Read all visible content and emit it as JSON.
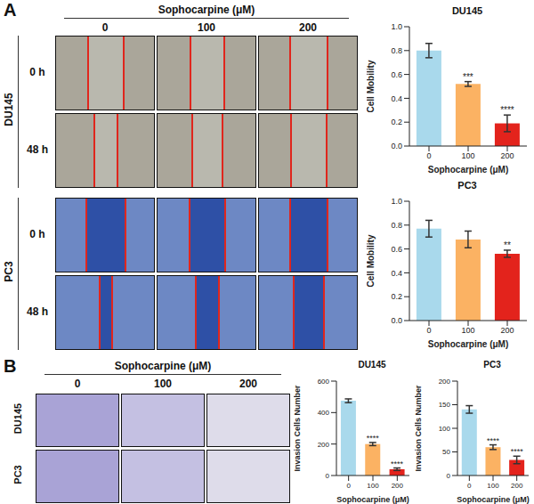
{
  "figure": {
    "panel_a": {
      "label": "A",
      "header": "Sophocarpine (μM)",
      "columns": [
        "0",
        "100",
        "200"
      ],
      "cell_lines": [
        "DU145",
        "PC3"
      ],
      "times": [
        "0 h",
        "48 h"
      ]
    },
    "panel_b": {
      "label": "B",
      "header": "Sophocarpine (μM)",
      "columns": [
        "0",
        "100",
        "200"
      ],
      "cell_lines": [
        "DU145",
        "PC3"
      ]
    }
  },
  "chart_data": [
    {
      "type": "bar",
      "title": "DU145",
      "x_label": "Sophocarpine (μM)",
      "y_label": "Cell Mobility",
      "categories": [
        "0",
        "100",
        "200"
      ],
      "values": [
        0.8,
        0.52,
        0.19
      ],
      "errors": [
        0.06,
        0.02,
        0.07
      ],
      "significance": [
        null,
        "***",
        "****"
      ],
      "colors": [
        "#a9d9ec",
        "#fbb263",
        "#e3231c"
      ],
      "ylim": [
        0,
        1
      ],
      "yticks": [
        {
          "value": 0,
          "label": "0.0"
        },
        {
          "value": 0.2,
          "label": "0.2"
        },
        {
          "value": 0.4,
          "label": "0.4"
        },
        {
          "value": 0.6,
          "label": "0.6"
        },
        {
          "value": 0.8,
          "label": "0.8"
        },
        {
          "value": 1,
          "label": "1.0"
        }
      ]
    },
    {
      "type": "bar",
      "title": "PC3",
      "x_label": "Sophocarpine (μM)",
      "y_label": "Cell Mobility",
      "categories": [
        "0",
        "100",
        "200"
      ],
      "values": [
        0.77,
        0.68,
        0.56
      ],
      "errors": [
        0.07,
        0.07,
        0.03
      ],
      "significance": [
        null,
        null,
        "**"
      ],
      "colors": [
        "#a9d9ec",
        "#fbb263",
        "#e3231c"
      ],
      "ylim": [
        0,
        1
      ],
      "yticks": [
        {
          "value": 0,
          "label": "0.0"
        },
        {
          "value": 0.2,
          "label": "0.2"
        },
        {
          "value": 0.4,
          "label": "0.4"
        },
        {
          "value": 0.6,
          "label": "0.6"
        },
        {
          "value": 0.8,
          "label": "0.8"
        },
        {
          "value": 1,
          "label": "1.0"
        }
      ]
    },
    {
      "type": "bar",
      "title": "DU145",
      "x_label": "Sophocarpine (μM)",
      "y_label": "Invasion Cells Number",
      "categories": [
        "0",
        "100",
        "200"
      ],
      "values": [
        475,
        200,
        40
      ],
      "errors": [
        12,
        10,
        8
      ],
      "significance": [
        null,
        "****",
        "****"
      ],
      "colors": [
        "#a9d9ec",
        "#fbb263",
        "#e3231c"
      ],
      "ylim": [
        0,
        600
      ],
      "yticks": [
        0,
        200,
        400,
        600
      ]
    },
    {
      "type": "bar",
      "title": "PC3",
      "x_label": "Sophocarpine (μM)",
      "y_label": "Invasion Cells Number",
      "categories": [
        "0",
        "100",
        "200"
      ],
      "values": [
        140,
        60,
        33
      ],
      "errors": [
        8,
        5,
        8
      ],
      "significance": [
        null,
        "****",
        "****"
      ],
      "colors": [
        "#a9d9ec",
        "#fbb263",
        "#e3231c"
      ],
      "ylim": [
        0,
        200
      ],
      "yticks": [
        0,
        50,
        100,
        150,
        200
      ]
    }
  ]
}
